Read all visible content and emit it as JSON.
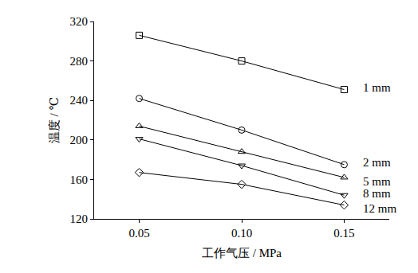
{
  "chart_data": {
    "type": "line",
    "x_label": "工作气压 / MPa",
    "y_label": "温度 / ℃",
    "x": [
      0.05,
      0.1,
      0.15
    ],
    "series": [
      {
        "name": "1 mm",
        "color": "#000000",
        "marker": "square-open",
        "values": [
          306,
          280,
          251
        ]
      },
      {
        "name": "2 mm",
        "color": "#000000",
        "marker": "circle-open",
        "values": [
          242,
          210,
          175
        ]
      },
      {
        "name": "5 mm",
        "color": "#000000",
        "marker": "triangle-up-open",
        "values": [
          214,
          188,
          162
        ]
      },
      {
        "name": "8 mm",
        "color": "#000000",
        "marker": "triangle-down-open",
        "values": [
          201,
          174,
          144
        ]
      },
      {
        "name": "12 mm",
        "color": "#000000",
        "marker": "diamond-open",
        "values": [
          167,
          155,
          134
        ]
      }
    ],
    "xlim": [
      0.028,
      0.172
    ],
    "xticks": [
      0.05,
      {
        "value": 0.1,
        "label": "0.10"
      },
      0.15
    ],
    "ylim": [
      120,
      320
    ],
    "yticks": [
      120,
      160,
      200,
      240,
      280,
      320
    ],
    "grid": false,
    "legend": "none"
  }
}
